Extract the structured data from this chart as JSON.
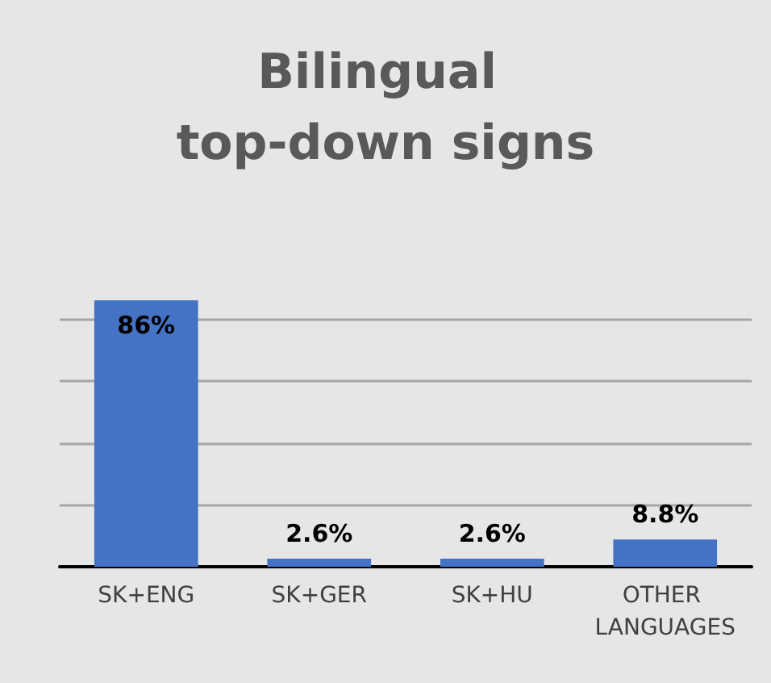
{
  "chart_data": {
    "type": "bar",
    "title": "Bilingual top-down signs",
    "categories": [
      "SK+ENG",
      "SK+GER",
      "SK+HU",
      "OTHER LANGUAGES"
    ],
    "values": [
      86,
      2.6,
      2.6,
      8.8
    ],
    "value_labels": [
      "86%",
      "2.6%",
      "2.6%",
      "8.8%"
    ],
    "color": "#4472c4",
    "yticks": [
      {
        "value": 0,
        "label": null
      },
      {
        "value": 20,
        "label": null
      },
      {
        "value": 40,
        "label": null
      },
      {
        "value": 60,
        "label": null
      },
      {
        "value": 80,
        "label": null
      }
    ],
    "grid": "y",
    "tick_labels": "x"
  }
}
